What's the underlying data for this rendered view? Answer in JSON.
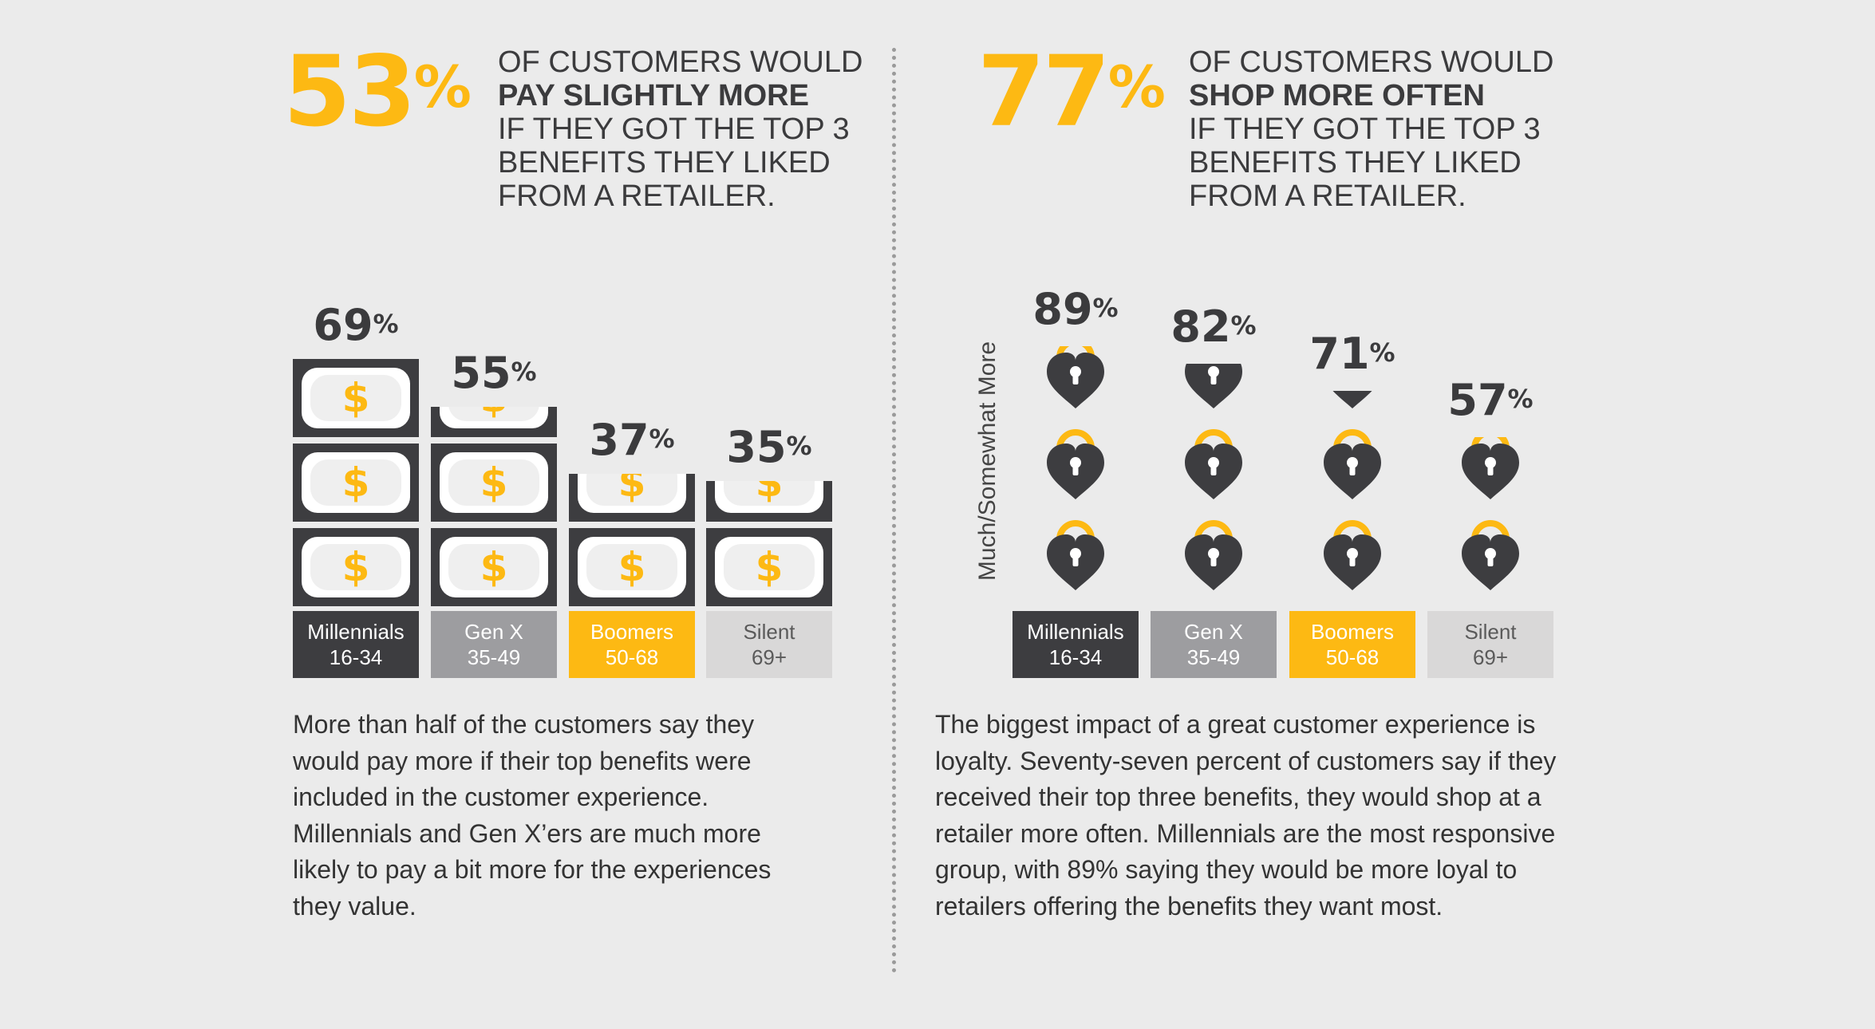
{
  "left": {
    "stat": {
      "value": "53",
      "unit": "%",
      "line1": "OF CUSTOMERS WOULD",
      "line2": "PAY SLIGHTLY MORE",
      "line3": "IF THEY GOT THE TOP 3",
      "line4": "BENEFITS THEY LIKED",
      "line5": "FROM A RETAILER."
    },
    "body": [
      "More than half of the customers say they",
      "would pay more if their top benefits were",
      "included in the customer experience.",
      "Millennials and Gen X’ers are much more",
      "likely to pay a bit more for the experiences",
      "they value."
    ]
  },
  "right": {
    "stat": {
      "value": "77",
      "unit": "%",
      "line1": "OF CUSTOMERS WOULD",
      "line2": "SHOP MORE OFTEN",
      "line3": "IF THEY GOT THE TOP 3",
      "line4": "BENEFITS THEY LIKED",
      "line5": "FROM A RETAILER."
    },
    "body": [
      "The biggest impact of a great customer experience is",
      "loyalty. Seventy-seven percent of customers say if they",
      "received their top three benefits, they would shop at a",
      "retailer more often. Millennials are the most responsive",
      "group, with 89% saying they would be more loyal to",
      "retailers offering the benefits they want most."
    ]
  },
  "colors": {
    "accent": "#fdb913",
    "millennials": "#3d3d40",
    "genx": "#9d9da0",
    "boomers": "#fdb913",
    "silent": "#d9d8d8",
    "icon_dark": "#3d3d40",
    "text": "#3b3b3d"
  },
  "chart_data": [
    {
      "type": "bar",
      "title": "Would pay slightly more",
      "icon": "dollar-bill-icon",
      "unit": "%",
      "categories": [
        {
          "name": "Millennials",
          "ages": "16-34"
        },
        {
          "name": "Gen X",
          "ages": "35-49"
        },
        {
          "name": "Boomers",
          "ages": "50-68"
        },
        {
          "name": "Silent",
          "ages": "69+"
        }
      ],
      "values": [
        69,
        55,
        37,
        35
      ],
      "ylim": [
        0,
        100
      ]
    },
    {
      "type": "bar",
      "title": "Would shop more often",
      "icon": "heart-lock-icon",
      "unit": "%",
      "ylabel": "Much/Somewhat More",
      "categories": [
        {
          "name": "Millennials",
          "ages": "16-34"
        },
        {
          "name": "Gen X",
          "ages": "35-49"
        },
        {
          "name": "Boomers",
          "ages": "50-68"
        },
        {
          "name": "Silent",
          "ages": "69+"
        }
      ],
      "values": [
        89,
        82,
        71,
        57
      ],
      "ylim": [
        0,
        100
      ]
    }
  ]
}
